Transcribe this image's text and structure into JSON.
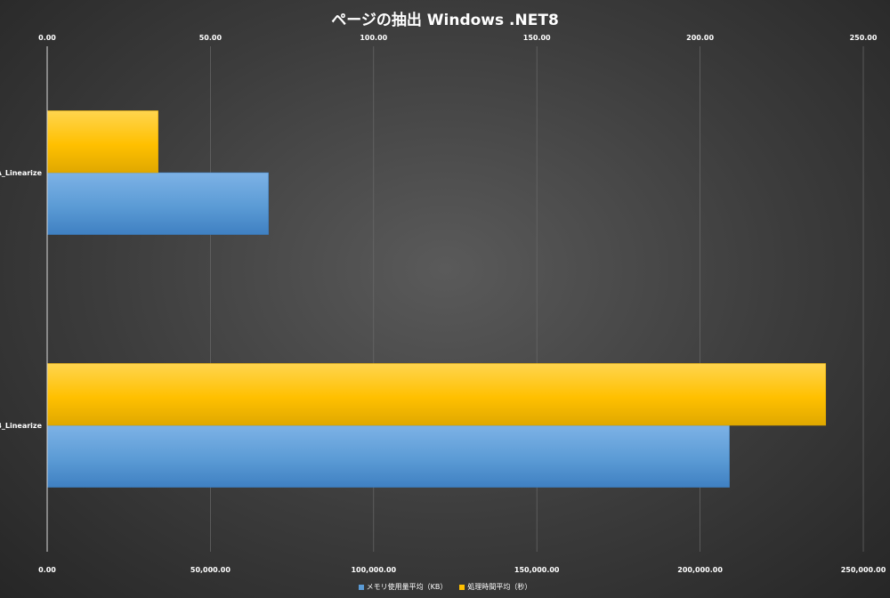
{
  "chart_data": {
    "type": "bar",
    "orientation": "horizontal",
    "title": "ページの抽出 Windows .NET8",
    "categories": [
      "A_Linearize",
      "B_Linearize"
    ],
    "series": [
      {
        "name": "メモリ使用量平均（KB）",
        "axis": "bottom",
        "color": "#5b9bd5",
        "values": [
          67800,
          209000
        ]
      },
      {
        "name": "処理時間平均（秒）",
        "axis": "top",
        "color": "#ffc000",
        "values": [
          34,
          238.5
        ]
      }
    ],
    "x_top": {
      "range": [
        0,
        250
      ],
      "ticks": [
        "0.00",
        "50.00",
        "100.00",
        "150.00",
        "200.00",
        "250.00"
      ]
    },
    "x_bottom": {
      "range": [
        0,
        250000
      ],
      "ticks": [
        "0.00",
        "50,000.00",
        "100,000.00",
        "150,000.00",
        "200,000.00",
        "250,000.00"
      ]
    },
    "grid": true,
    "legend_position": "bottom"
  }
}
